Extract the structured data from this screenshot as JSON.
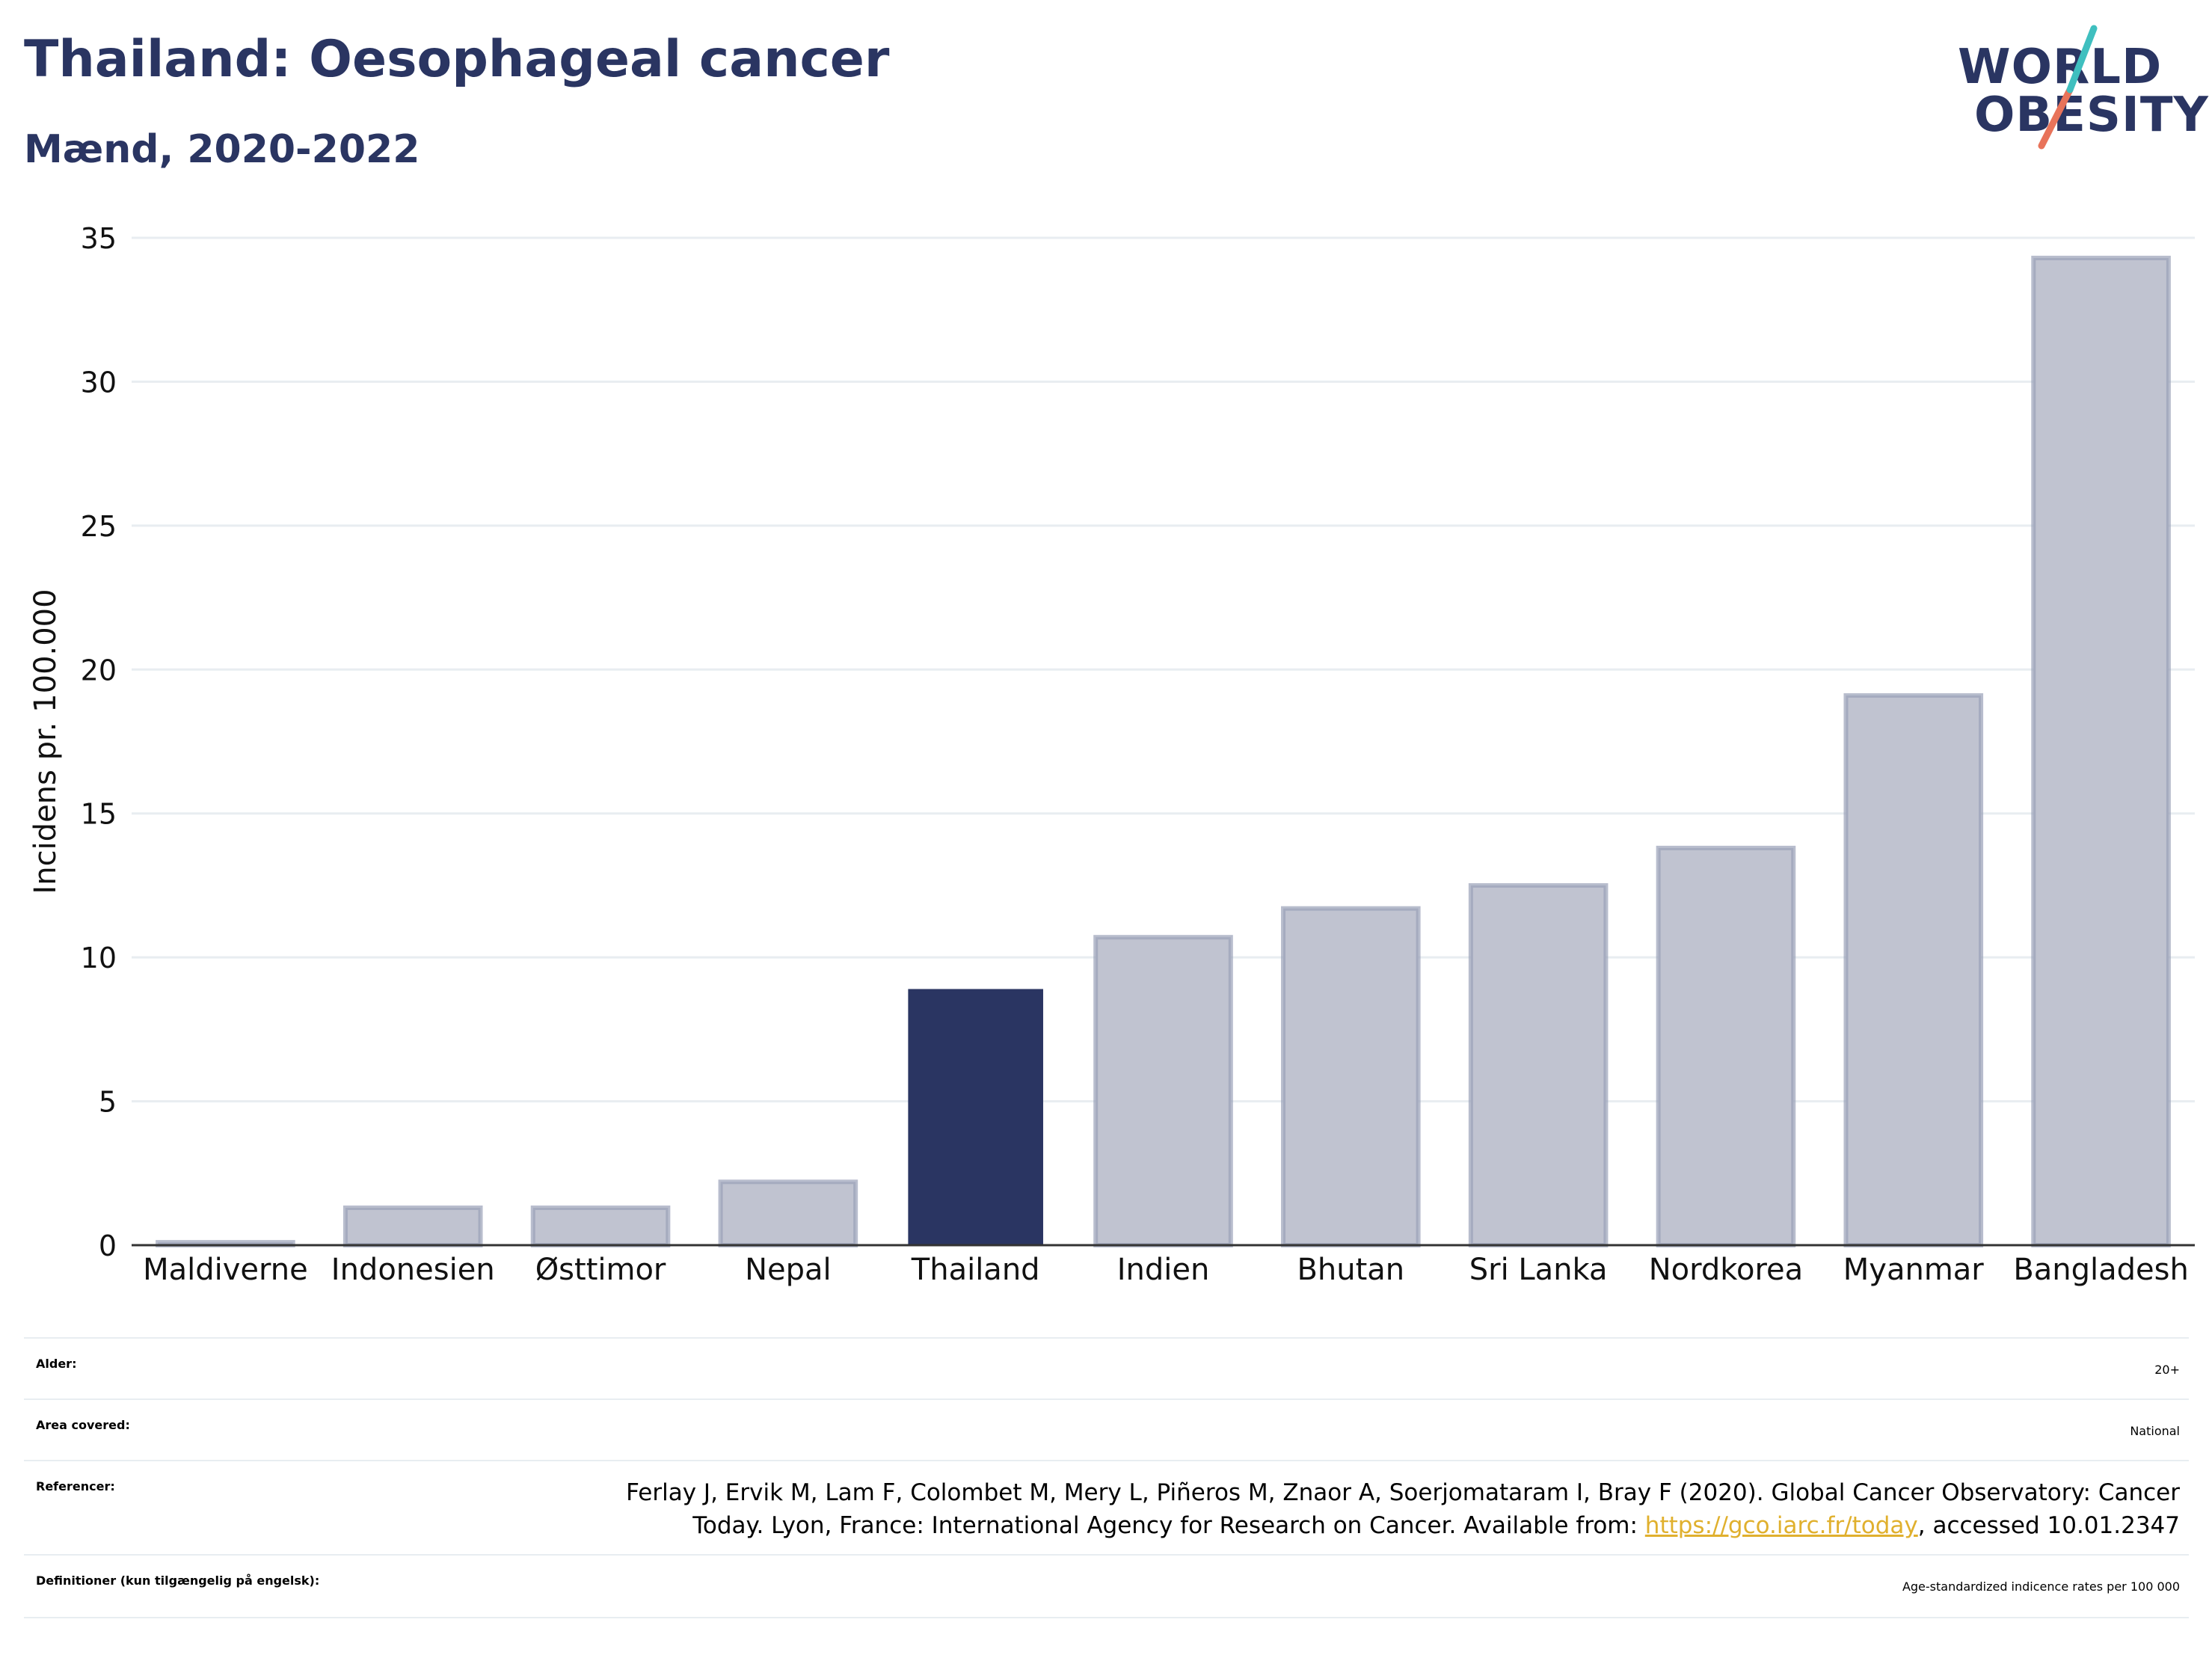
{
  "header": {
    "title": "Thailand: Oesophageal cancer",
    "subtitle": "Mænd, 2020-2022"
  },
  "logo": {
    "line1": "WORLD",
    "line2": "OBESITY",
    "accent_teal": "#3fbfbf",
    "accent_coral": "#e8735a"
  },
  "chart_data": {
    "type": "bar",
    "categories": [
      "Maldiverne",
      "Indonesien",
      "Østtimor",
      "Nepal",
      "Thailand",
      "Indien",
      "Bhutan",
      "Sri Lanka",
      "Nordkorea",
      "Myanmar",
      "Bangladesh"
    ],
    "values": [
      0.1,
      1.3,
      1.3,
      2.2,
      8.9,
      10.7,
      11.7,
      12.5,
      13.8,
      19.1,
      34.3
    ],
    "highlight": "Thailand",
    "ylabel": "Incidens pr. 100.000",
    "xlabel": "",
    "ylim": [
      0,
      35
    ],
    "yticks": [
      0,
      5,
      10,
      15,
      20,
      25,
      30,
      35
    ],
    "grid": true,
    "colors": {
      "bar": "#c0c3d0",
      "bar_stroke": "#9aa1b8",
      "highlight": "#2a3562",
      "grid": "#e8edf1",
      "axis": "#333333"
    }
  },
  "info": {
    "age_label": "Alder:",
    "age_value": "20+",
    "area_label": "Area covered:",
    "area_value": "National",
    "ref_label": "Referencer:",
    "ref_line1": "Ferlay J, Ervik M, Lam F, Colombet M, Mery L, Piñeros M, Znaor A, Soerjomataram I, Bray F (2020). Global Cancer Observatory: Cancer",
    "ref_line2_pre": "Today. Lyon, France: International Agency for Research on Cancer. Available from: ",
    "ref_link": "https://gco.iarc.fr/today",
    "ref_line2_post": ", accessed 10.01.2347",
    "def_label": "Definitioner (kun tilgængelig på engelsk):",
    "def_value": "Age-standardized indicence rates per 100 000"
  }
}
